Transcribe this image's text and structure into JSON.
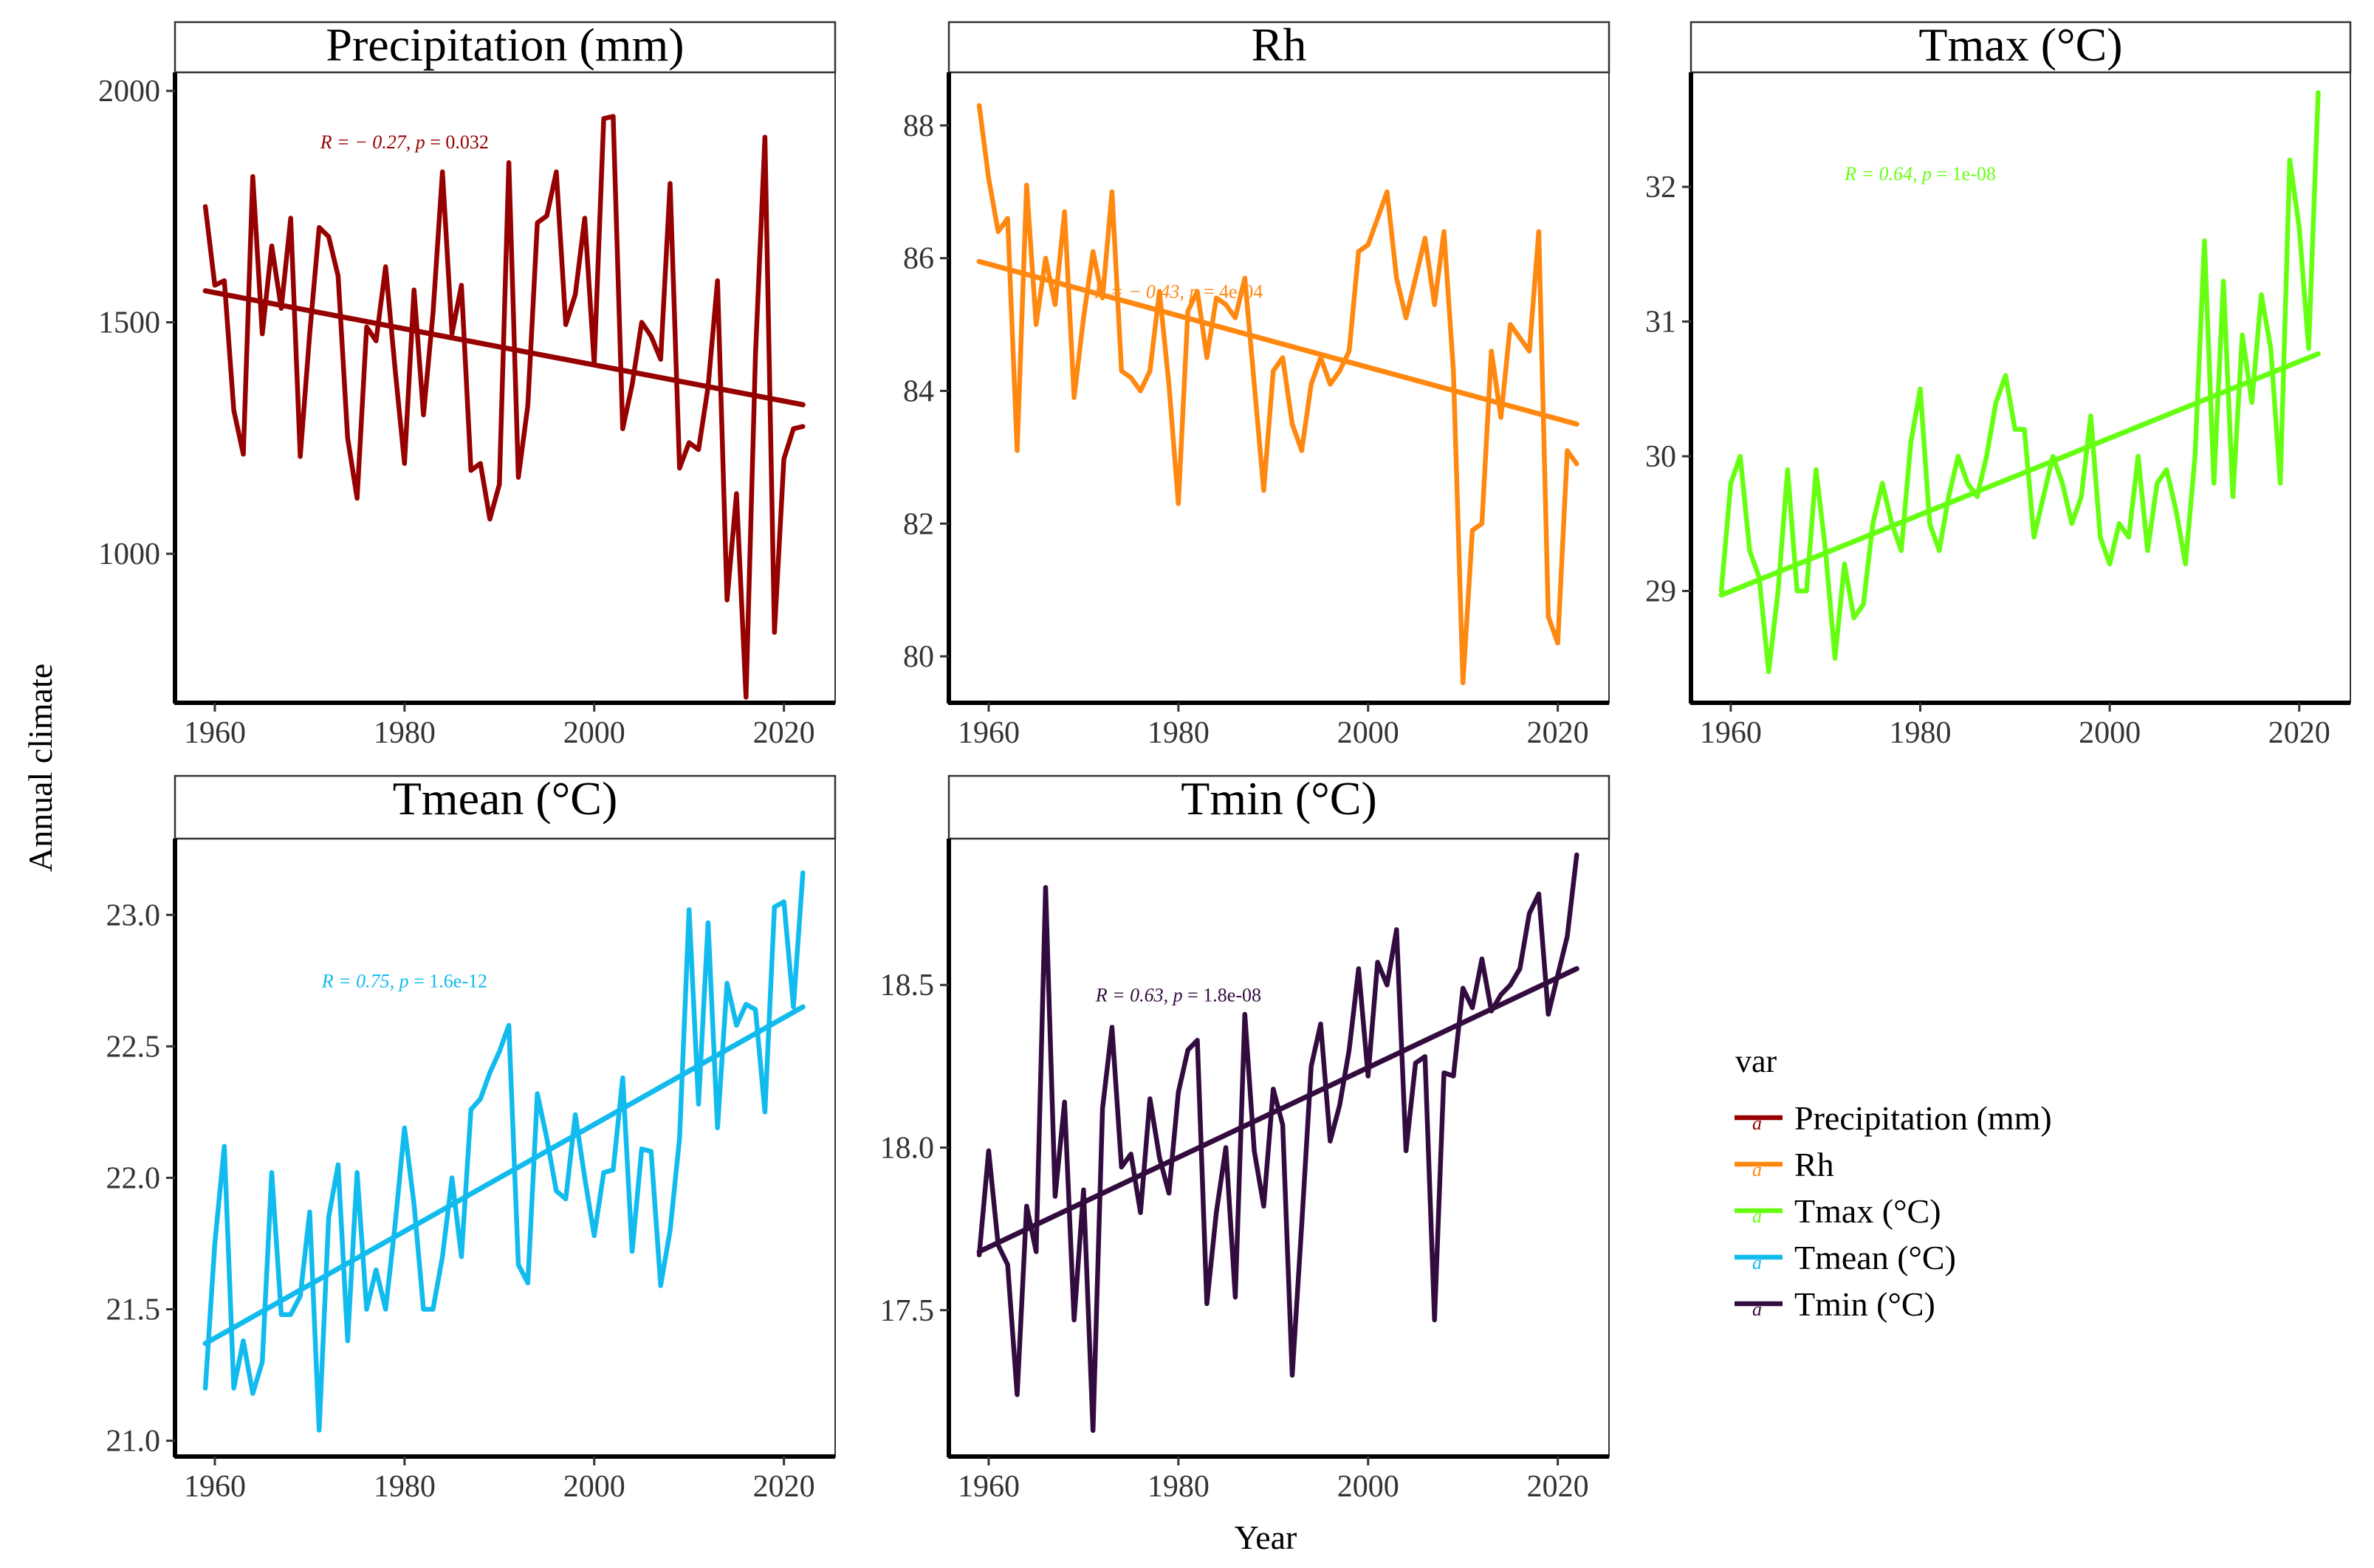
{
  "chart_data": {
    "type": "line",
    "layout": "facet_wrap",
    "ylabel": "Annual climate",
    "xlabel": "Year",
    "legend": {
      "title": "var",
      "position": "right",
      "entries": [
        "Precipitation (mm)",
        "Rh",
        "Tmax (°C)",
        "Tmean (°C)",
        "Tmin (°C)"
      ]
    },
    "panels": [
      {
        "name": "Precipitation (mm)",
        "color": "#960000",
        "ylim": [
          678,
          2040
        ],
        "yticks": [
          1000,
          1500,
          2000
        ],
        "yticklabels": [
          "1000",
          "1500",
          "2000"
        ],
        "xlim": [
          1955.8,
          2025.4
        ],
        "xticks": [
          1960,
          1980,
          2000,
          2020
        ],
        "xticklabels": [
          "1960",
          "1980",
          "2000",
          "2020"
        ],
        "annotation": {
          "prefix": "R = − 0.27, ",
          "p": "p",
          "suffix": " = 0.032",
          "x": 1980,
          "y": 1890
        },
        "trend": {
          "x": [
            1959,
            2022
          ],
          "y": [
            1568,
            1322
          ]
        },
        "x_start": 1959,
        "values": [
          1750,
          1580,
          1590,
          1310,
          1215,
          1815,
          1475,
          1665,
          1530,
          1725,
          1210,
          1475,
          1705,
          1685,
          1600,
          1250,
          1120,
          1490,
          1460,
          1620,
          1400,
          1195,
          1570,
          1300,
          1520,
          1825,
          1475,
          1580,
          1180,
          1195,
          1075,
          1150,
          1845,
          1165,
          1320,
          1715,
          1730,
          1825,
          1495,
          1560,
          1725,
          1410,
          1940,
          1945,
          1270,
          1365,
          1500,
          1470,
          1420,
          1800,
          1185,
          1240,
          1225,
          1360,
          1590,
          900,
          1130,
          690,
          1430,
          1900,
          830,
          1205,
          1270,
          1275
        ]
      },
      {
        "name": "Rh",
        "color": "#ff8811",
        "ylim": [
          79.3,
          88.8
        ],
        "yticks": [
          80,
          82,
          84,
          86,
          88
        ],
        "yticklabels": [
          "80",
          "82",
          "84",
          "86",
          "88"
        ],
        "xlim": [
          1955.8,
          2025.4
        ],
        "xticks": [
          1960,
          1980,
          2000,
          2020
        ],
        "xticklabels": [
          "1960",
          "1980",
          "2000",
          "2020"
        ],
        "annotation": {
          "prefix": "R = − 0.43, ",
          "p": "p",
          "suffix": " = 4e-04",
          "x": 1980,
          "y": 85.5
        },
        "trend": {
          "x": [
            1959,
            2022
          ],
          "y": [
            85.95,
            83.5
          ]
        },
        "x_start": 1959,
        "values": [
          88.3,
          87.2,
          86.4,
          86.6,
          83.1,
          87.1,
          85.0,
          86.0,
          85.3,
          86.7,
          83.9,
          85.1,
          86.1,
          85.4,
          87.0,
          84.3,
          84.2,
          84.0,
          84.3,
          85.5,
          84.1,
          82.3,
          85.2,
          85.5,
          84.5,
          85.4,
          85.3,
          85.1,
          85.7,
          84.1,
          82.5,
          84.3,
          84.5,
          83.5,
          83.1,
          84.1,
          84.5,
          84.1,
          84.3,
          84.6,
          86.1,
          86.2,
          86.6,
          87.0,
          85.7,
          85.1,
          85.7,
          86.3,
          85.3,
          86.4,
          84.3,
          79.6,
          81.9,
          82.0,
          84.6,
          83.6,
          85.0,
          84.8,
          84.6,
          86.4,
          80.6,
          80.2,
          83.1,
          82.9
        ]
      },
      {
        "name": "Tmax (°C)",
        "color": "#66ff11",
        "ylim": [
          28.17,
          32.85
        ],
        "yticks": [
          29,
          30,
          31,
          32
        ],
        "yticklabels": [
          "29",
          "30",
          "31",
          "32"
        ],
        "xlim": [
          1955.8,
          2025.4
        ],
        "xticks": [
          1960,
          1980,
          2000,
          2020
        ],
        "xticklabels": [
          "1960",
          "1980",
          "2000",
          "2020"
        ],
        "annotation": {
          "prefix": "R = 0.64, ",
          "p": "p",
          "suffix": " = 1e-08",
          "x": 1980,
          "y": 32.1
        },
        "trend": {
          "x": [
            1959,
            2022
          ],
          "y": [
            28.97,
            30.76
          ]
        },
        "x_start": 1959,
        "values": [
          29.0,
          29.8,
          30.0,
          29.3,
          29.1,
          28.4,
          29.0,
          29.9,
          29.0,
          29.0,
          29.9,
          29.3,
          28.5,
          29.2,
          28.8,
          28.9,
          29.5,
          29.8,
          29.5,
          29.3,
          30.1,
          30.5,
          29.5,
          29.3,
          29.7,
          30.0,
          29.8,
          29.7,
          30.0,
          30.4,
          30.6,
          30.2,
          30.2,
          29.4,
          29.7,
          30.0,
          29.8,
          29.5,
          29.7,
          30.3,
          29.4,
          29.2,
          29.5,
          29.4,
          30.0,
          29.3,
          29.8,
          29.9,
          29.6,
          29.2,
          30.0,
          31.6,
          29.8,
          31.3,
          29.7,
          30.9,
          30.4,
          31.2,
          30.8,
          29.8,
          32.2,
          31.7,
          30.8,
          32.7
        ]
      },
      {
        "name": "Tmean (°C)",
        "color": "#11bbee",
        "ylim": [
          20.94,
          23.29
        ],
        "yticks": [
          21.0,
          21.5,
          22.0,
          22.5,
          23.0
        ],
        "yticklabels": [
          "21.0",
          "21.5",
          "22.0",
          "22.5",
          "23.0"
        ],
        "xlim": [
          1955.8,
          2025.4
        ],
        "xticks": [
          1960,
          1980,
          2000,
          2020
        ],
        "xticklabels": [
          "1960",
          "1980",
          "2000",
          "2020"
        ],
        "annotation": {
          "prefix": "R = 0.75, ",
          "p": "p",
          "suffix": " = 1.6e-12",
          "x": 1980,
          "y": 22.75
        },
        "trend": {
          "x": [
            1959,
            2022
          ],
          "y": [
            21.37,
            22.65
          ]
        },
        "x_start": 1959,
        "values": [
          21.2,
          21.75,
          22.12,
          21.2,
          21.38,
          21.18,
          21.3,
          22.02,
          21.48,
          21.48,
          21.55,
          21.87,
          21.04,
          21.85,
          22.05,
          21.38,
          22.02,
          21.5,
          21.65,
          21.5,
          21.82,
          22.19,
          21.9,
          21.5,
          21.5,
          21.7,
          22.0,
          21.7,
          22.26,
          22.3,
          22.4,
          22.48,
          22.58,
          21.67,
          21.6,
          22.32,
          22.15,
          21.95,
          21.92,
          22.24,
          22.0,
          21.78,
          22.02,
          22.03,
          22.38,
          21.72,
          22.11,
          22.1,
          21.59,
          21.8,
          22.15,
          23.02,
          22.28,
          22.97,
          22.19,
          22.74,
          22.58,
          22.66,
          22.64,
          22.25,
          23.03,
          23.05,
          22.65,
          23.16
        ]
      },
      {
        "name": "Tmin (°C)",
        "color": "#330c3f",
        "ylim": [
          17.05,
          18.95
        ],
        "yticks": [
          17.5,
          18.0,
          18.5
        ],
        "yticklabels": [
          "17.5",
          "18.0",
          "18.5"
        ],
        "xlim": [
          1955.8,
          2025.4
        ],
        "xticks": [
          1960,
          1980,
          2000,
          2020
        ],
        "xticklabels": [
          "1960",
          "1980",
          "2000",
          "2020"
        ],
        "annotation": {
          "prefix": "R = 0.63, ",
          "p": "p",
          "suffix": " = 1.8e-08",
          "x": 1980,
          "y": 18.47
        },
        "trend": {
          "x": [
            1959,
            2022
          ],
          "y": [
            17.68,
            18.55
          ]
        },
        "x_start": 1959,
        "values": [
          17.67,
          17.99,
          17.7,
          17.64,
          17.24,
          17.82,
          17.68,
          18.8,
          17.85,
          18.14,
          17.47,
          17.87,
          17.13,
          18.12,
          18.37,
          17.94,
          17.98,
          17.8,
          18.15,
          17.97,
          17.86,
          18.17,
          18.3,
          18.33,
          17.52,
          17.8,
          18.0,
          17.54,
          18.41,
          17.99,
          17.82,
          18.18,
          18.07,
          17.3,
          17.76,
          18.25,
          18.38,
          18.02,
          18.13,
          18.3,
          18.55,
          18.22,
          18.57,
          18.5,
          18.67,
          17.99,
          18.26,
          18.28,
          17.47,
          18.23,
          18.22,
          18.49,
          18.43,
          18.58,
          18.42,
          18.47,
          18.5,
          18.55,
          18.72,
          18.78,
          18.41,
          18.53,
          18.65,
          18.9
        ]
      }
    ]
  }
}
